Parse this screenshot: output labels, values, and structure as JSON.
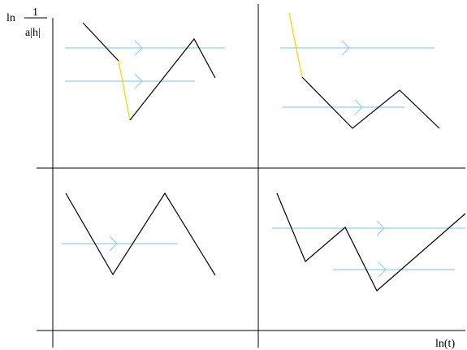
{
  "labels": {
    "y_axis_prefix": "ln",
    "y_axis_numerator": "1",
    "y_axis_denominator": "a|h|",
    "x_axis": "ln(t)"
  },
  "colors": {
    "axis": "#000000",
    "path": "#000000",
    "highlight": "#ffd400",
    "arrow": "#8fd0f0",
    "background": "#ffffff"
  },
  "panels": [
    {
      "name": "top-left"
    },
    {
      "name": "top-right"
    },
    {
      "name": "bottom-left"
    },
    {
      "name": "bottom-right"
    }
  ]
}
